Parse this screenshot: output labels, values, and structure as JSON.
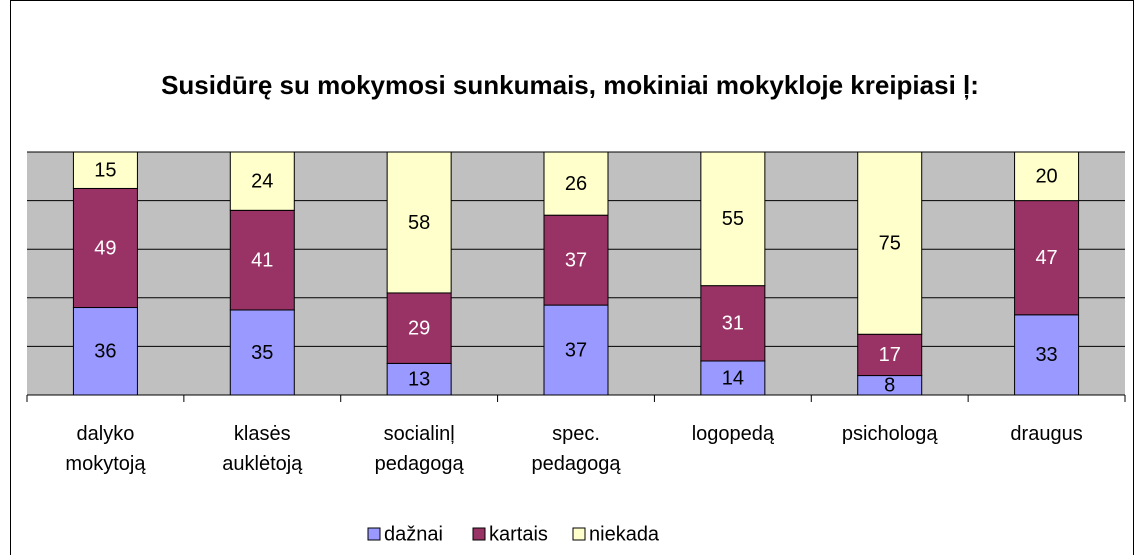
{
  "chart_data": {
    "type": "stacked_bar_100",
    "title": "Susidūrę su mokymosi sunkumais, mokiniai mokykloje kreipiasi ļ:",
    "categories": [
      "dalyko mokytoją",
      "klasės auklėtoją",
      "socialinļ pedagogą",
      "spec. pedagogą",
      "logopedą",
      "psichologą",
      "draugus"
    ],
    "series": [
      {
        "name": "dažnai",
        "color": "#9999ff",
        "label_color": "#000000",
        "values": [
          36,
          35,
          13,
          37,
          14,
          8,
          33
        ]
      },
      {
        "name": "kartais",
        "color": "#993366",
        "label_color": "#ffffff",
        "values": [
          49,
          41,
          29,
          37,
          31,
          17,
          47
        ]
      },
      {
        "name": "niekada",
        "color": "#ffffcc",
        "label_color": "#000000",
        "values": [
          15,
          24,
          58,
          26,
          55,
          75,
          20
        ]
      }
    ],
    "ylim": [
      0,
      100
    ],
    "yticks": [
      0,
      20,
      40,
      60,
      80,
      100
    ],
    "grid": true,
    "legend": "bottom"
  }
}
